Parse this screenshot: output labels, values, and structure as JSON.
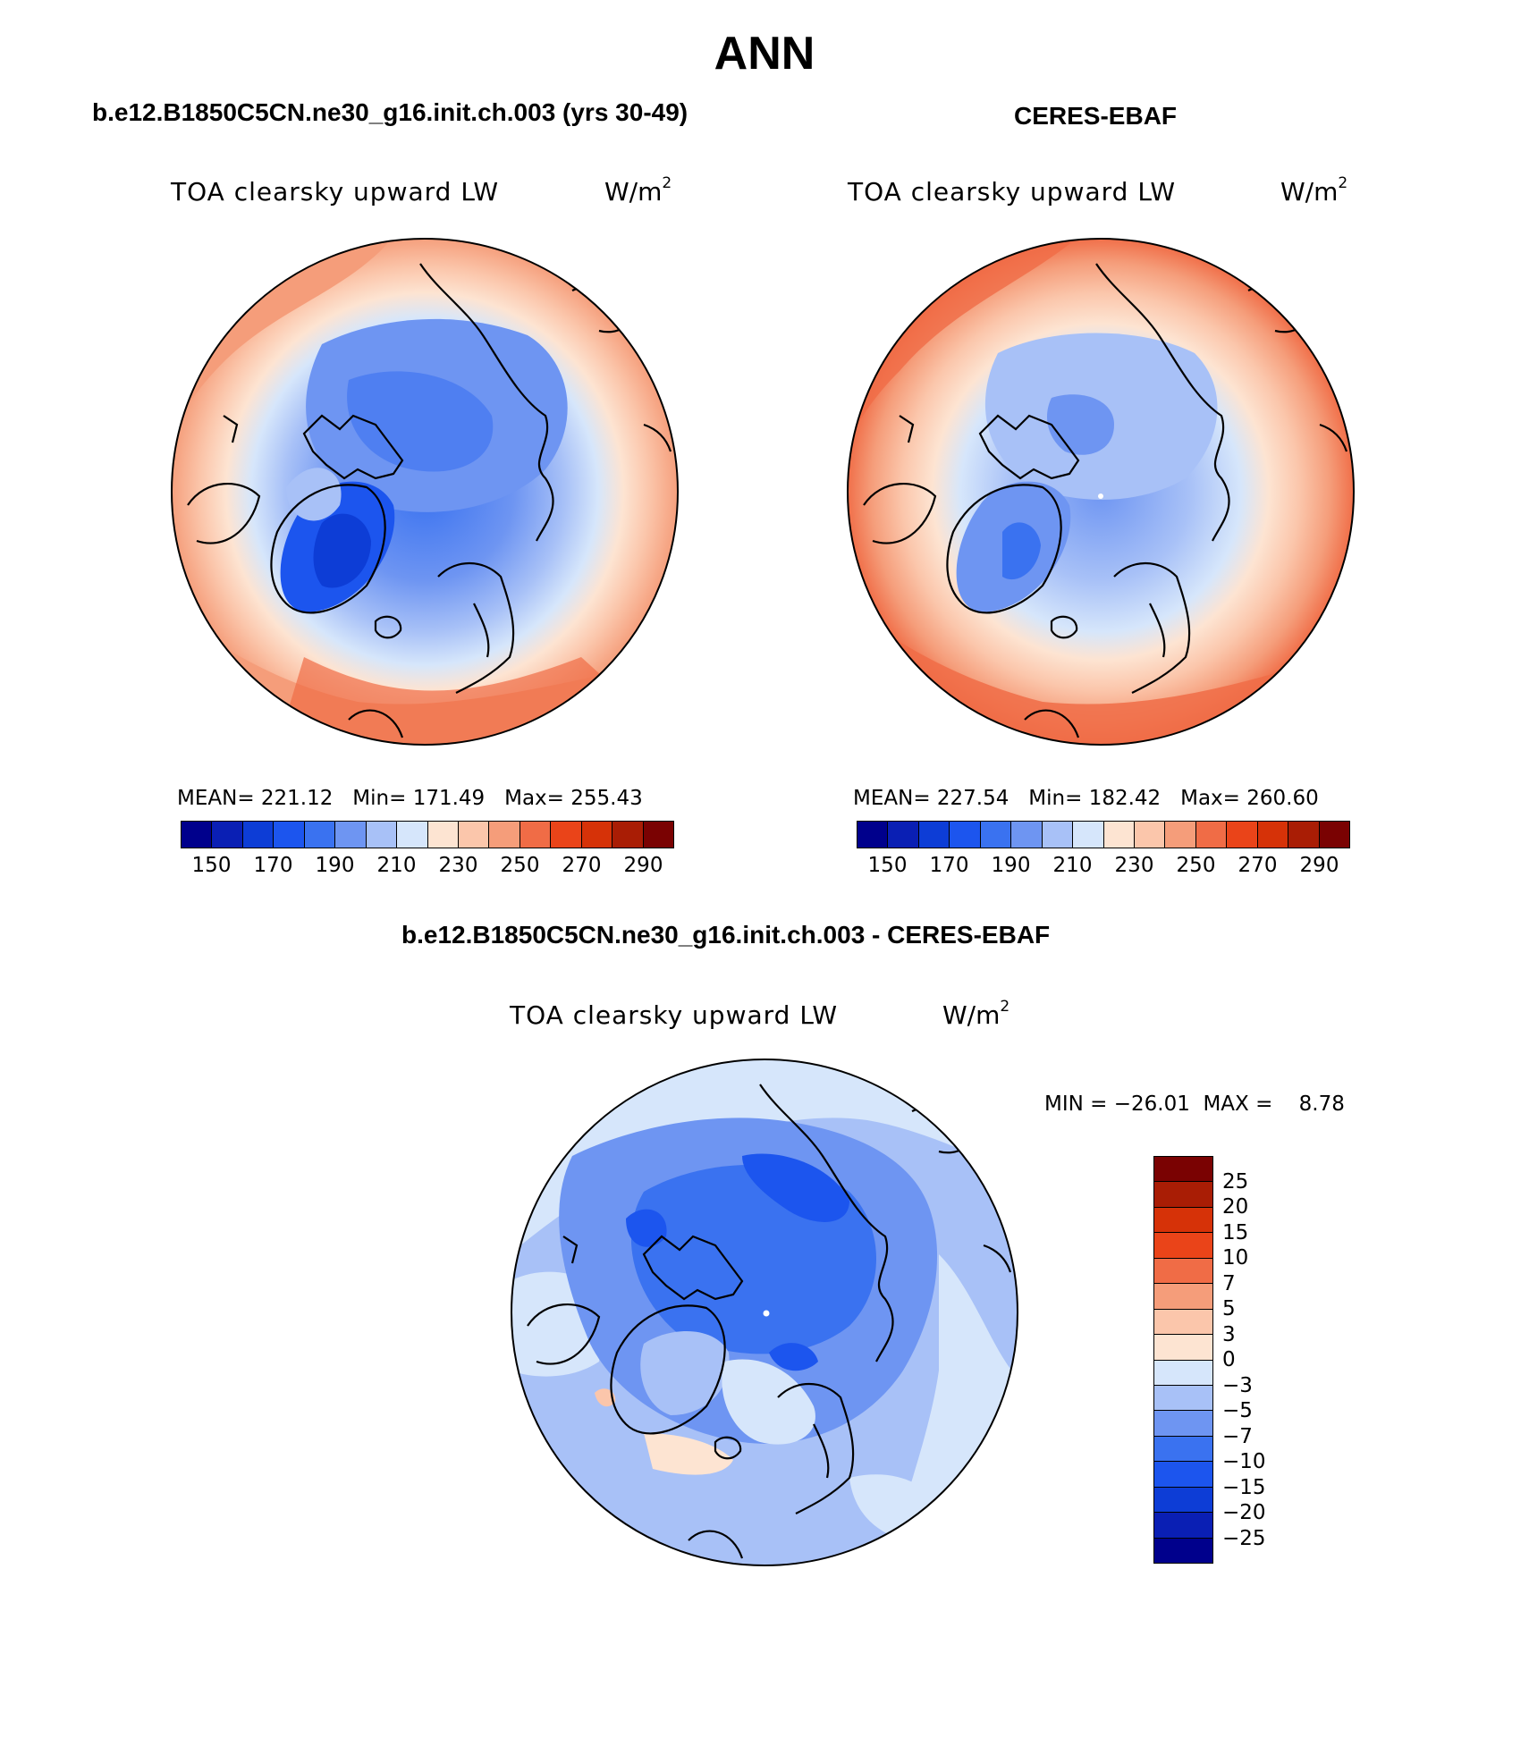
{
  "title": "ANN",
  "panels": [
    {
      "id": "model",
      "title": "b.e12.B1850C5CN.ne30_g16.init.ch.003 (yrs 30-49)",
      "variable": "TOA clearsky upward LW",
      "units_base": "W/m",
      "units_exp": "2",
      "stats": "MEAN= 221.12   Min= 171.49   Max= 255.43",
      "colorbar_ticks": [
        "150",
        "170",
        "190",
        "210",
        "230",
        "250",
        "270",
        "290"
      ]
    },
    {
      "id": "obs",
      "title": "CERES-EBAF",
      "variable": "TOA clearsky upward LW",
      "units_base": "W/m",
      "units_exp": "2",
      "stats": "MEAN= 227.54   Min= 182.42   Max= 260.60",
      "colorbar_ticks": [
        "150",
        "170",
        "190",
        "210",
        "230",
        "250",
        "270",
        "290"
      ]
    },
    {
      "id": "diff",
      "title": "b.e12.B1850C5CN.ne30_g16.init.ch.003 - CERES-EBAF",
      "variable": "TOA clearsky upward LW",
      "units_base": "W/m",
      "units_exp": "2",
      "stats": "MIN = −26.01  MAX =    8.78",
      "colorbar_ticks": [
        "25",
        "20",
        "15",
        "10",
        "7",
        "5",
        "3",
        "0",
        "−3",
        "−5",
        "−7",
        "−10",
        "−15",
        "−20",
        "−25"
      ]
    }
  ],
  "colors": {
    "abs_scale": [
      "#00008c",
      "#0a1fb4",
      "#0d3dd6",
      "#1c55ee",
      "#3a72f0",
      "#6e95f2",
      "#a8c1f7",
      "#d6e6fb",
      "#fde4d2",
      "#fbc6ab",
      "#f59d7a",
      "#f06c46",
      "#ea4419",
      "#d63208",
      "#a91d05",
      "#7a0202"
    ],
    "diff_scale": [
      "#7a0202",
      "#a91d05",
      "#d63208",
      "#ea4419",
      "#f06c46",
      "#f59d7a",
      "#fbc6ab",
      "#fde4d2",
      "#d6e6fb",
      "#a8c1f7",
      "#6e95f2",
      "#3a72f0",
      "#1c55ee",
      "#0d3dd6",
      "#0a1fb4",
      "#00008c"
    ]
  }
}
